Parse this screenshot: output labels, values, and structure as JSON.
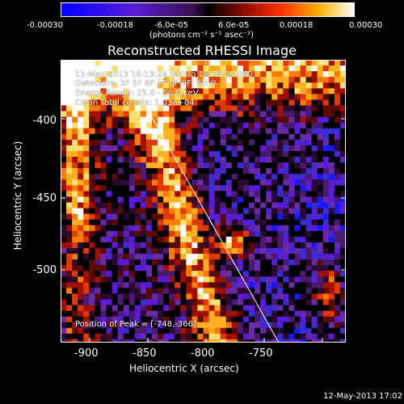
{
  "colorbar": {
    "ticks": [
      "-0.00030",
      "-0.00018",
      "-6.0e-05",
      "6.0e-05",
      "0.00018",
      "0.00030"
    ],
    "units": "(photons cm⁻² s⁻¹ asec⁻²)"
  },
  "title": "Reconstructed RHESSI Image",
  "info": {
    "time": "11-May-2013 16:13:24.000 to 16:18:00.000",
    "detectors": "Detectors: 3F 5F 6F 7F 8F 9F, Att 0",
    "energy": "Energy Range: 25.0 - 50.0 keV",
    "clean": "Clean   Total counts: 1.03e+04",
    "peak": "Position of Peak = [-748,-366]"
  },
  "axes": {
    "ylabel": "Heliocentric Y (arcsec)",
    "xlabel": "Heliocentric X (arcsec)",
    "yticks": [
      "-400",
      "-450",
      "-500"
    ],
    "xticks": [
      "-900",
      "-850",
      "-800",
      "-750"
    ]
  },
  "footer": {
    "date": "12-May-2013 17:02"
  },
  "colors": {
    "background": "#000000",
    "text": "#ffffff"
  }
}
